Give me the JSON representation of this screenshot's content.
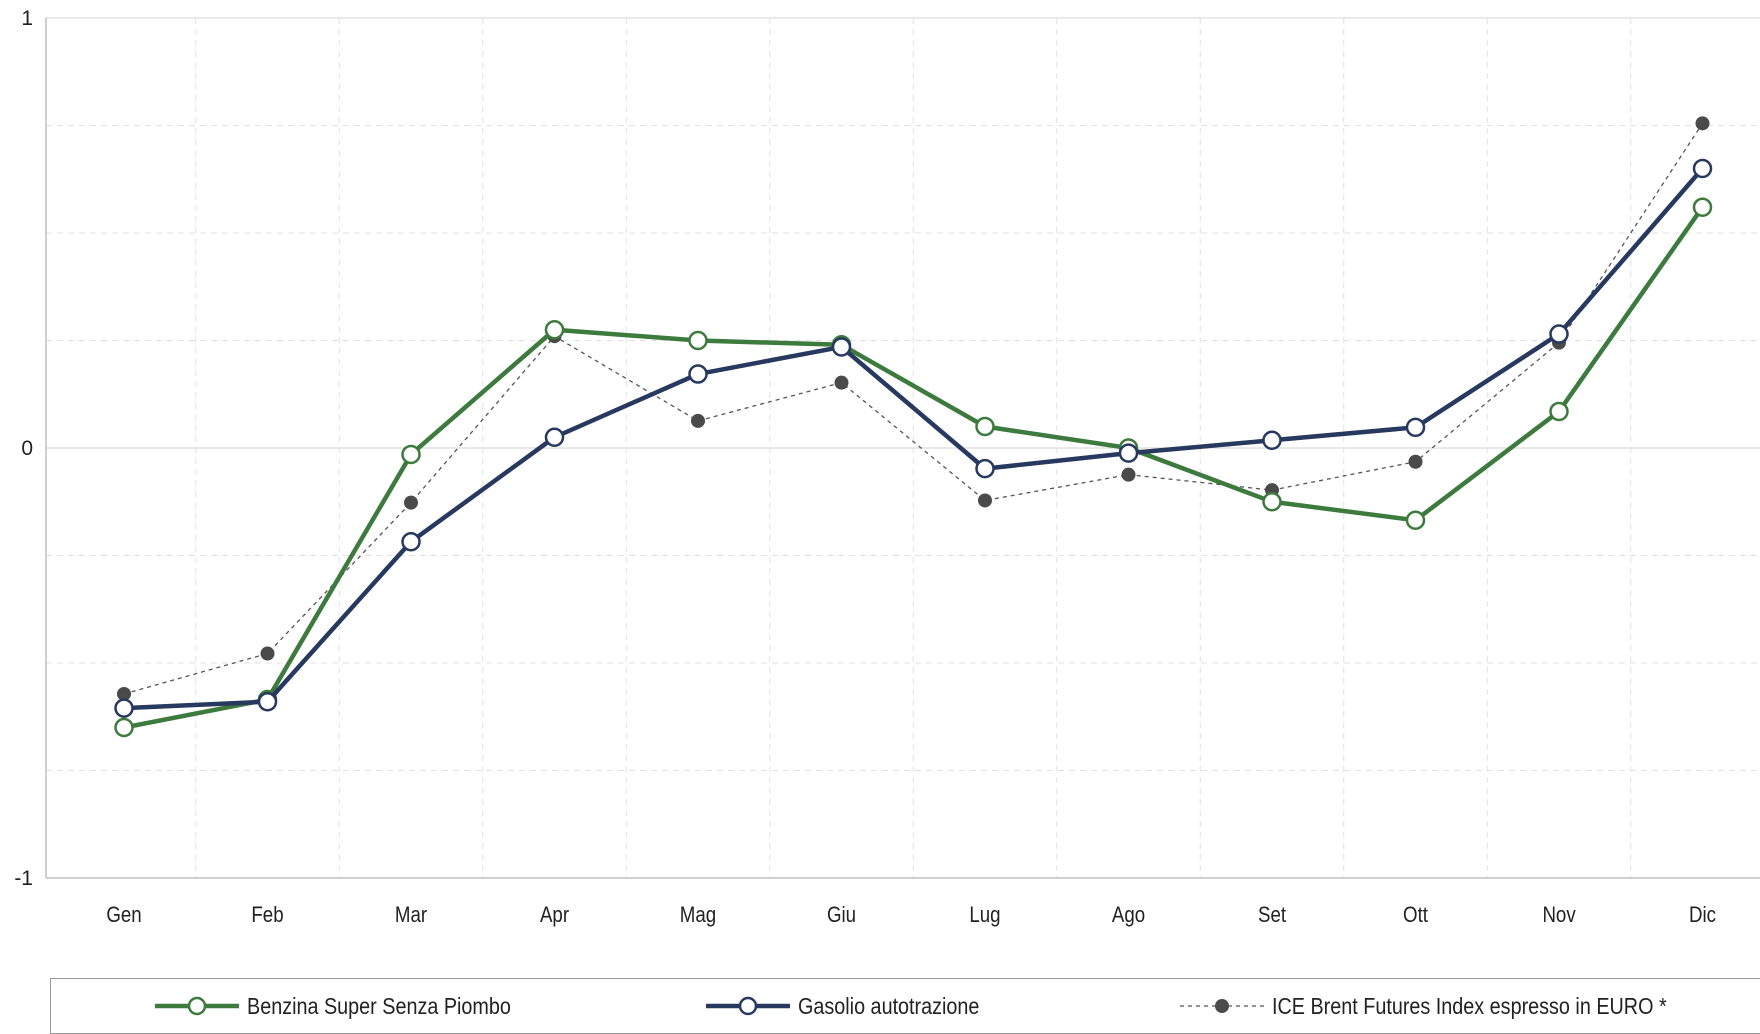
{
  "chart_data": {
    "type": "line",
    "categories": [
      "Gen",
      "Feb",
      "Mar",
      "Apr",
      "Mag",
      "Giu",
      "Lug",
      "Ago",
      "Set",
      "Ott",
      "Nov",
      "Dic"
    ],
    "ylim": [
      -1,
      1
    ],
    "yticks": [
      {
        "value": 1,
        "label": "1"
      },
      {
        "value": 0,
        "label": "0"
      },
      {
        "value": -1,
        "label": "-1"
      }
    ],
    "y_minor_gridlines": [
      0.75,
      0.5,
      0.25,
      -0.25,
      -0.5,
      -0.75
    ],
    "grid": true,
    "legend_position": "bottom",
    "series": [
      {
        "name": "Benzina Super Senza Piombo",
        "color": "#3d7a3d",
        "style": "solid-thick-open-markers",
        "values": [
          -0.65,
          -0.585,
          -0.015,
          0.275,
          0.25,
          0.24,
          0.05,
          0.0,
          -0.125,
          -0.168,
          0.085,
          0.56
        ]
      },
      {
        "name": "Gasolio autotrazione",
        "color": "#27395f",
        "style": "solid-thick-open-markers",
        "values": [
          -0.605,
          -0.59,
          -0.218,
          0.025,
          0.172,
          0.235,
          -0.048,
          -0.012,
          0.018,
          0.048,
          0.265,
          0.65
        ]
      },
      {
        "name": "ICE Brent Futures Index espresso in EURO *",
        "color": "#555555",
        "style": "dashed-thin-filled-markers",
        "values": [
          -0.572,
          -0.478,
          -0.127,
          0.26,
          0.063,
          0.152,
          -0.122,
          -0.062,
          -0.098,
          -0.032,
          0.245,
          0.755
        ]
      }
    ]
  }
}
